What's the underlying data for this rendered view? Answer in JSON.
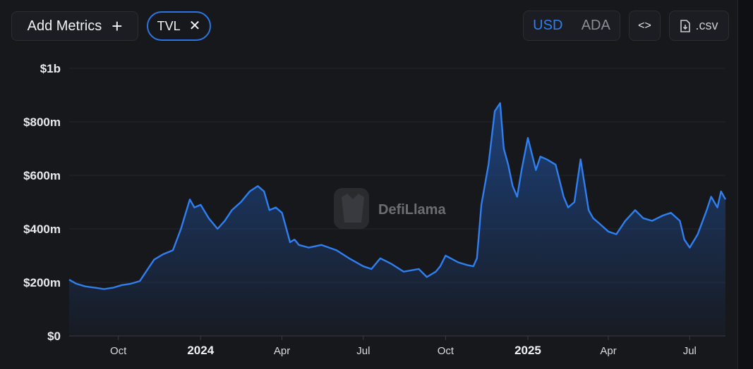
{
  "toolbar": {
    "add_metrics_label": "Add Metrics",
    "add_icon": "plus-icon",
    "metric_pill_label": "TVL",
    "remove_icon": "close-icon",
    "currency_options": [
      "USD",
      "ADA"
    ],
    "currency_selected": "USD",
    "embed_icon": "code-icon",
    "csv_label": ".csv",
    "csv_icon": "file-download-icon"
  },
  "watermark": {
    "text": "DefiLlama",
    "icon": "llama-logo-icon"
  },
  "colors": {
    "background": "#17181c",
    "line": "#2f7ff0",
    "area_top": "#1f4f9a",
    "accent": "#2d74e3"
  },
  "chart_data": {
    "type": "area",
    "title": "",
    "xlabel": "",
    "ylabel": "",
    "ylim": [
      0,
      1000
    ],
    "y_unit": "millions USD",
    "y_ticks": [
      0,
      200,
      400,
      600,
      800,
      1000
    ],
    "y_tick_labels": [
      "$0",
      "$200m",
      "$400m",
      "$600m",
      "$800m",
      "$1b"
    ],
    "x_ticks": [
      "2023-10-01",
      "2024-01-01",
      "2024-04-01",
      "2024-07-01",
      "2024-10-01",
      "2025-01-01",
      "2025-04-01",
      "2025-07-01"
    ],
    "x_tick_labels": [
      "Oct",
      "2024",
      "Apr",
      "Jul",
      "Oct",
      "2025",
      "Apr",
      "Jul"
    ],
    "x_major_ticks": [
      "2024",
      "2025"
    ],
    "xlim": [
      "2023-08-07",
      "2025-08-10"
    ],
    "grid": true,
    "legend": "none",
    "series": [
      {
        "x": [
          "2023-08-07",
          "2023-08-15",
          "2023-08-25",
          "2023-09-05",
          "2023-09-15",
          "2023-09-25",
          "2023-10-05",
          "2023-10-15",
          "2023-10-25",
          "2023-11-05",
          "2023-11-10",
          "2023-11-20",
          "2023-12-01",
          "2023-12-10",
          "2023-12-20",
          "2023-12-25",
          "2024-01-01",
          "2024-01-10",
          "2024-01-20",
          "2024-01-28",
          "2024-02-05",
          "2024-02-15",
          "2024-02-25",
          "2024-03-05",
          "2024-03-12",
          "2024-03-18",
          "2024-03-25",
          "2024-04-01",
          "2024-04-10",
          "2024-04-15",
          "2024-04-20",
          "2024-05-01",
          "2024-05-15",
          "2024-06-01",
          "2024-06-15",
          "2024-07-01",
          "2024-07-10",
          "2024-07-20",
          "2024-08-01",
          "2024-08-15",
          "2024-09-01",
          "2024-09-10",
          "2024-09-20",
          "2024-09-25",
          "2024-10-01",
          "2024-10-15",
          "2024-10-25",
          "2024-11-01",
          "2024-11-05",
          "2024-11-10",
          "2024-11-18",
          "2024-11-25",
          "2024-12-01",
          "2024-12-05",
          "2024-12-10",
          "2024-12-15",
          "2024-12-20",
          "2024-12-25",
          "2025-01-01",
          "2025-01-10",
          "2025-01-15",
          "2025-01-22",
          "2025-02-01",
          "2025-02-10",
          "2025-02-15",
          "2025-02-22",
          "2025-03-01",
          "2025-03-10",
          "2025-03-15",
          "2025-03-22",
          "2025-04-01",
          "2025-04-10",
          "2025-04-20",
          "2025-05-01",
          "2025-05-10",
          "2025-05-20",
          "2025-06-01",
          "2025-06-10",
          "2025-06-20",
          "2025-06-25",
          "2025-07-01",
          "2025-07-10",
          "2025-07-20",
          "2025-07-25",
          "2025-08-01",
          "2025-08-05",
          "2025-08-10"
        ],
        "values": [
          210,
          195,
          185,
          180,
          175,
          180,
          190,
          195,
          205,
          260,
          285,
          305,
          320,
          400,
          510,
          480,
          490,
          440,
          400,
          430,
          470,
          500,
          540,
          560,
          540,
          470,
          480,
          460,
          350,
          360,
          340,
          330,
          340,
          320,
          290,
          260,
          250,
          290,
          270,
          240,
          250,
          220,
          240,
          260,
          300,
          275,
          265,
          260,
          290,
          490,
          640,
          840,
          870,
          700,
          640,
          560,
          520,
          620,
          740,
          620,
          670,
          660,
          640,
          520,
          480,
          500,
          660,
          470,
          440,
          420,
          390,
          380,
          430,
          470,
          440,
          430,
          450,
          460,
          430,
          360,
          330,
          380,
          470,
          520,
          480,
          540,
          510
        ]
      }
    ]
  }
}
